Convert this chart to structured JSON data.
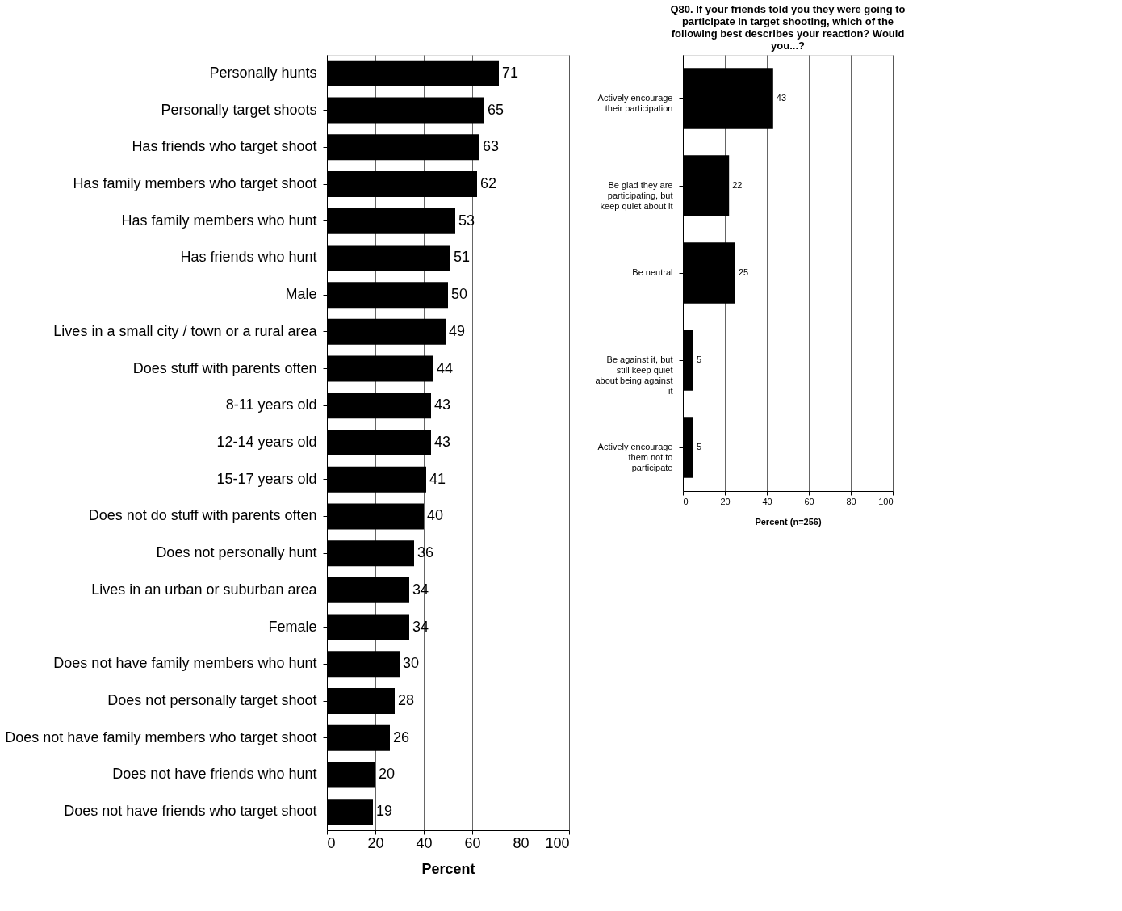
{
  "chart_data": [
    {
      "type": "bar",
      "orientation": "horizontal",
      "xlabel": "Percent",
      "categories": [
        "Personally hunts",
        "Personally target shoots",
        "Has friends who target shoot",
        "Has family members who target shoot",
        "Has family members who hunt",
        "Has friends who hunt",
        "Male",
        "Lives in a small city / town or a rural area",
        "Does stuff with parents often",
        "8-11 years old",
        "12-14 years old",
        "15-17 years old",
        "Does not do stuff with parents often",
        "Does not personally hunt",
        "Lives in an urban or suburban area",
        "Female",
        "Does not have family members who hunt",
        "Does not personally target shoot",
        "Does not have family members who target shoot",
        "Does not have friends who hunt",
        "Does not have friends who target shoot"
      ],
      "values": [
        71,
        65,
        63,
        62,
        53,
        51,
        50,
        49,
        44,
        43,
        43,
        41,
        40,
        36,
        34,
        34,
        30,
        28,
        26,
        20,
        19
      ],
      "color": "#000000",
      "xlim": [
        0,
        100
      ],
      "xticks": [
        0,
        20,
        40,
        60,
        80,
        100
      ],
      "grid": "x",
      "data_labels": true
    },
    {
      "type": "bar",
      "orientation": "horizontal",
      "title": "Q80. If your friends told you they were going to participate in target shooting, which of the following best describes your reaction? Would you...?",
      "xlabel": "Percent (n=256)",
      "categories": [
        "Actively encourage their participation",
        "Be glad they are participating, but keep quiet about it",
        "Be neutral",
        "Be against it, but still keep quiet about being against it",
        "Actively encourage them not to participate"
      ],
      "values": [
        43,
        22,
        25,
        5,
        5
      ],
      "color": "#000000",
      "xlim": [
        0,
        100
      ],
      "xticks": [
        0,
        20,
        40,
        60,
        80,
        100
      ],
      "grid": "x",
      "data_labels": true
    }
  ]
}
